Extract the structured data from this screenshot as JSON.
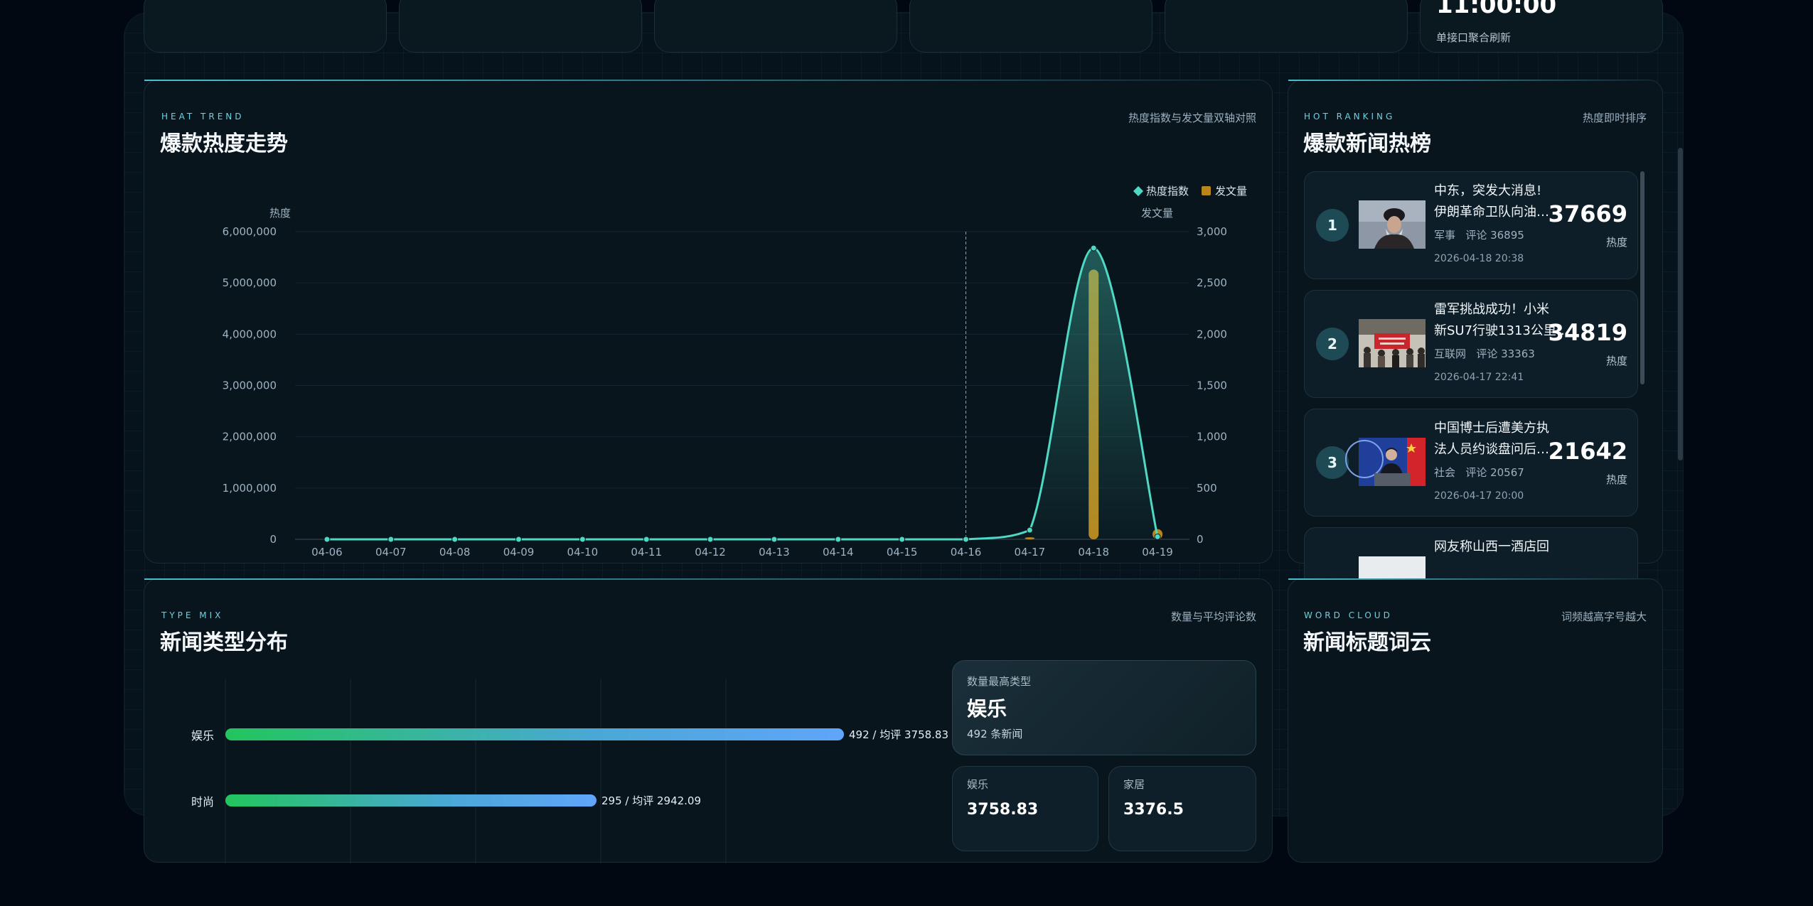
{
  "top_cards": {
    "value_partial": "11:00:00",
    "note": "单接口聚合刷新"
  },
  "heat_trend": {
    "eyebrow": "HEAT TREND",
    "title": "爆款热度走势",
    "note": "热度指数与发文量双轴对照",
    "legend": {
      "line": "热度指数",
      "bar": "发文量"
    },
    "left_axis_title": "热度",
    "right_axis_title": "发文量"
  },
  "chart_data": {
    "type": "line",
    "categories": [
      "04-06",
      "04-07",
      "04-08",
      "04-09",
      "04-10",
      "04-11",
      "04-12",
      "04-13",
      "04-14",
      "04-15",
      "04-16",
      "04-17",
      "04-18",
      "04-19"
    ],
    "series": [
      {
        "name": "热度指数",
        "axis": "left",
        "type": "line",
        "values": [
          0,
          0,
          0,
          0,
          0,
          0,
          0,
          0,
          0,
          0,
          0,
          180000,
          5680000,
          50000
        ]
      },
      {
        "name": "发文量",
        "axis": "right",
        "type": "bar",
        "values": [
          0,
          0,
          0,
          0,
          0,
          0,
          0,
          0,
          0,
          0,
          0,
          20,
          2630,
          100
        ]
      }
    ],
    "y_left": {
      "ylim": [
        0,
        6000000
      ],
      "ticks": [
        "6,000,000",
        "5,000,000",
        "4,000,000",
        "3,000,000",
        "2,000,000",
        "1,000,000",
        "0"
      ]
    },
    "y_right": {
      "ylim": [
        0,
        3000
      ],
      "ticks": [
        "3,000",
        "2,500",
        "2,000",
        "1,500",
        "1,000",
        "500",
        "0"
      ]
    },
    "marker_category": "04-16",
    "grid": true,
    "legend_position": "top-right",
    "colors": {
      "line": "#4fd8c4",
      "bar": "#b8861b"
    }
  },
  "hot_ranking": {
    "eyebrow": "HOT RANKING",
    "title": "爆款新闻热榜",
    "note": "热度即时排序",
    "score_label": "热度",
    "items": [
      {
        "rank": "1",
        "title_line1": "中东，突发大消息!",
        "title_line2": "伊朗革命卫队向油…",
        "category": "军事",
        "comments": "评论 36895",
        "date": "2026-04-18 20:38",
        "score": "37669"
      },
      {
        "rank": "2",
        "title_line1": "雷军挑战成功！小米",
        "title_line2": "新SU7行驶1313公里…",
        "category": "互联网",
        "comments": "评论 33363",
        "date": "2026-04-17 22:41",
        "score": "34819"
      },
      {
        "rank": "3",
        "title_line1": "中国博士后遭美方执",
        "title_line2": "法人员约谈盘问后…",
        "category": "社会",
        "comments": "评论 20567",
        "date": "2026-04-17 20:00",
        "score": "21642"
      },
      {
        "rank": "4",
        "title_line1": "网友称山西一酒店回",
        "title_line2": "",
        "category": "",
        "comments": "",
        "date": "",
        "score": ""
      }
    ]
  },
  "type_mix": {
    "eyebrow": "TYPE MIX",
    "title": "新闻类型分布",
    "note": "数量与平均评论数",
    "bars": [
      {
        "label": "娱乐",
        "count": 492,
        "value_text": "492 / 均评 3758.83"
      },
      {
        "label": "时尚",
        "count": 295,
        "value_text": "295 / 均评 2942.09"
      }
    ],
    "top_type": {
      "caption": "数量最高类型",
      "name": "娱乐",
      "sub": "492 条新闻"
    },
    "stats": [
      {
        "label": "娱乐",
        "value": "3758.83"
      },
      {
        "label": "家居",
        "value": "3376.5"
      }
    ]
  },
  "word_cloud": {
    "eyebrow": "WORD CLOUD",
    "title": "新闻标题词云",
    "note": "词频越高字号越大"
  }
}
